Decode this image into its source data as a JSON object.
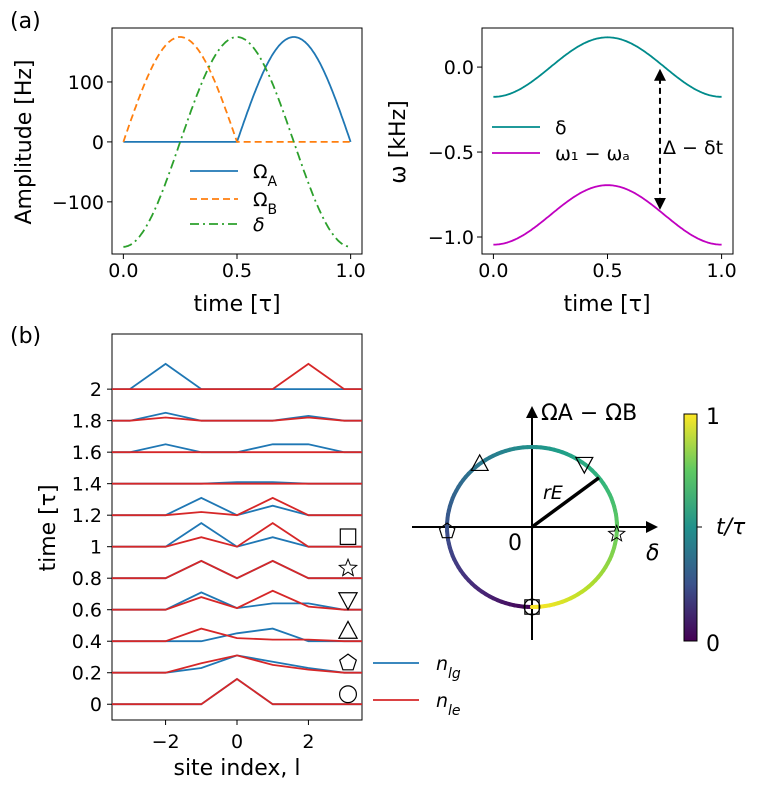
{
  "panel_labels": {
    "a": "(a)",
    "b": "(b)"
  },
  "chart_data": [
    {
      "id": "amp",
      "type": "line",
      "title": "",
      "xlabel": "time [τ]",
      "ylabel": "Amplitude [Hz]",
      "xlim": [
        -0.05,
        1.05
      ],
      "ylim": [
        -187,
        190
      ],
      "xticks": [
        0.0,
        0.5,
        1.0
      ],
      "xtick_labels": [
        "0.0",
        "0.5",
        "1.0"
      ],
      "yticks": [
        -100,
        0,
        100
      ],
      "ytick_labels": [
        "−100",
        "0",
        "100"
      ],
      "legend_location": "lower-right",
      "series": [
        {
          "name": "Ω_A",
          "label": "ΩA",
          "color": "#1f77b4",
          "style": "solid",
          "func": "omegaA",
          "amplitude": 175
        },
        {
          "name": "Ω_B",
          "label": "ΩB",
          "color": "#ff7f0e",
          "style": "dashed",
          "func": "omegaB",
          "amplitude": 175
        },
        {
          "name": "δ",
          "label": "δ",
          "color": "#2ca02c",
          "style": "dashdot",
          "func": "cos_neg",
          "amplitude": 175
        }
      ]
    },
    {
      "id": "omega",
      "type": "line",
      "title": "",
      "xlabel": "time [τ]",
      "ylabel": "ω [kHz]",
      "xlim": [
        -0.05,
        1.05
      ],
      "ylim": [
        -1.1,
        0.23
      ],
      "xticks": [
        0.0,
        0.5,
        1.0
      ],
      "xtick_labels": [
        "0.0",
        "0.5",
        "1.0"
      ],
      "yticks": [
        -1.0,
        -0.5,
        0.0
      ],
      "ytick_labels": [
        "−1.0",
        "−0.5",
        "0.0"
      ],
      "legend_location": "center-left",
      "series": [
        {
          "name": "δ",
          "label": "δ",
          "color": "#008b8b",
          "style": "solid",
          "center": 0.0,
          "half_amplitude": 0.175
        },
        {
          "name": "ω1 − ωa",
          "label": "ω₁ − ωₐ",
          "color": "#c000c0",
          "style": "solid",
          "center": -0.87,
          "half_amplitude": 0.175
        }
      ],
      "annotation": {
        "text": "Δ − δt",
        "at_time": 0.73,
        "from": -0.84,
        "to": -0.01
      }
    },
    {
      "id": "density",
      "type": "line",
      "title": "",
      "xlabel": "site index, l",
      "ylabel": "time [τ]",
      "xlim": [
        -3.5,
        3.5
      ],
      "ylim": [
        -0.1,
        2.35
      ],
      "xticks": [
        -2,
        0,
        2
      ],
      "xtick_labels": [
        "−2",
        "0",
        "2"
      ],
      "yticks": [
        0,
        0.2,
        0.4,
        0.6,
        0.8,
        1,
        1.2,
        1.4,
        1.6,
        1.8,
        2
      ],
      "ytick_labels": [
        "0",
        "0.2",
        "0.4",
        "0.6",
        "0.8",
        "1",
        "1.2",
        "1.4",
        "1.6",
        "1.8",
        "2"
      ],
      "sites": [
        -4,
        -3,
        -2,
        -1,
        0,
        1,
        2,
        3,
        4
      ],
      "legend": [
        {
          "name": "n_lg",
          "label": "nlg",
          "color": "#1f77b4"
        },
        {
          "name": "n_le",
          "label": "nle",
          "color": "#d62728"
        }
      ],
      "rows": [
        {
          "t": 0,
          "marker": "circle",
          "n_lg": [
            0,
            0,
            0,
            0,
            0.16,
            0,
            0,
            0,
            0
          ],
          "n_le": [
            0,
            0,
            0,
            0,
            0.16,
            0,
            0,
            0,
            0
          ]
        },
        {
          "t": 0.2,
          "marker": "pentagon",
          "n_lg": [
            0,
            0,
            0,
            0.03,
            0.11,
            0.07,
            0.03,
            0,
            0
          ],
          "n_le": [
            0,
            0,
            0,
            0.06,
            0.11,
            0.05,
            0.02,
            0,
            0
          ]
        },
        {
          "t": 0.4,
          "marker": "triangle-up",
          "n_lg": [
            0,
            0,
            0,
            0,
            0.05,
            0.08,
            0,
            0,
            0
          ],
          "n_le": [
            0,
            0,
            0,
            0.08,
            0.02,
            0.01,
            0.01,
            0,
            0
          ]
        },
        {
          "t": 0.6,
          "marker": "triangle-down",
          "n_lg": [
            0,
            0,
            0,
            0.11,
            0.01,
            0.04,
            0.04,
            0,
            0
          ],
          "n_le": [
            0,
            0,
            0,
            0.08,
            0.01,
            0.12,
            0.02,
            0,
            0
          ]
        },
        {
          "t": 0.8,
          "marker": "star",
          "n_lg": [
            0,
            0,
            0,
            0.11,
            0,
            0.11,
            0,
            0,
            0
          ],
          "n_le": [
            0,
            0,
            0,
            0.11,
            0,
            0.11,
            0,
            0,
            0
          ]
        },
        {
          "t": 1.0,
          "marker": "square",
          "n_lg": [
            0,
            0,
            0,
            0.15,
            0,
            0.06,
            0,
            0,
            0
          ],
          "n_le": [
            0,
            0,
            0,
            0.06,
            0,
            0.15,
            0,
            0,
            0
          ]
        },
        {
          "t": 1.2,
          "marker": "",
          "n_lg": [
            0,
            0,
            0,
            0.11,
            0,
            0.06,
            0,
            0,
            0
          ],
          "n_le": [
            0,
            0,
            0,
            0.02,
            0,
            0.11,
            0,
            0,
            0
          ]
        },
        {
          "t": 1.4,
          "marker": "",
          "n_lg": [
            0,
            0,
            0,
            0,
            0.01,
            0.01,
            0,
            0,
            0
          ],
          "n_le": [
            0,
            0,
            0,
            0,
            0,
            0,
            0,
            0,
            0
          ]
        },
        {
          "t": 1.6,
          "marker": "",
          "n_lg": [
            0,
            0,
            0.05,
            0,
            0,
            0.05,
            0.05,
            0,
            0
          ],
          "n_le": [
            0,
            0,
            0,
            0,
            0,
            0,
            0,
            0,
            0
          ]
        },
        {
          "t": 1.8,
          "marker": "",
          "n_lg": [
            0,
            0,
            0.05,
            0,
            0,
            0,
            0.03,
            0,
            0
          ],
          "n_le": [
            0,
            0,
            0.02,
            0,
            0,
            0,
            0.02,
            0,
            0
          ]
        },
        {
          "t": 2.0,
          "marker": "",
          "n_lg": [
            0,
            0,
            0.16,
            0,
            0,
            0,
            0,
            0,
            0
          ],
          "n_le": [
            0,
            0,
            0,
            0,
            0,
            0,
            0.16,
            0,
            0
          ]
        }
      ]
    },
    {
      "id": "bloch",
      "type": "scatter",
      "title": "",
      "xlabel": "δ",
      "ylabel": "ΩA − ΩB",
      "origin_label": "0",
      "radius_label": "rE",
      "color_range": [
        0,
        1
      ],
      "radius_angle_deg": 38,
      "points": [
        {
          "marker": "circle",
          "angle_deg": 270,
          "t": 0.0
        },
        {
          "marker": "pentagon",
          "angle_deg": 183,
          "t": 0.2
        },
        {
          "marker": "triangle-up",
          "angle_deg": 128,
          "t": 0.4
        },
        {
          "marker": "triangle-down",
          "angle_deg": 52,
          "t": 0.6
        },
        {
          "marker": "star",
          "angle_deg": 355,
          "t": 0.8
        },
        {
          "marker": "square",
          "angle_deg": 270,
          "t": 1.0
        }
      ],
      "colorbar": {
        "label": "t/τ",
        "min_label": "0",
        "max_label": "1",
        "colormap": "viridis"
      }
    }
  ]
}
